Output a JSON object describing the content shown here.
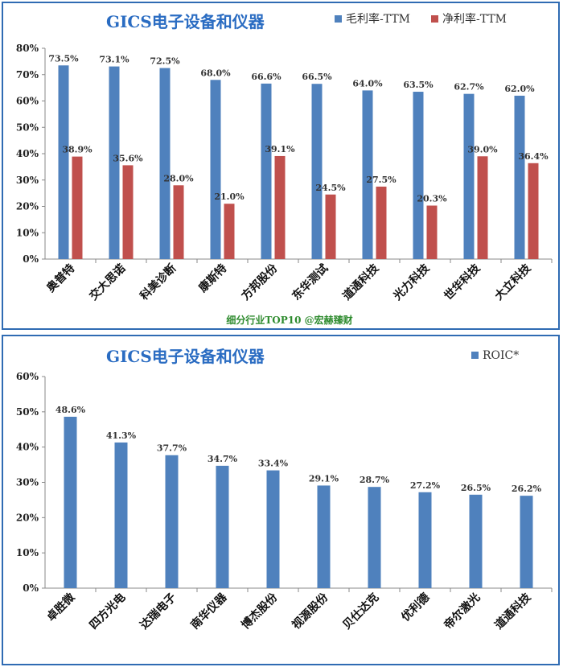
{
  "chart_data": [
    {
      "type": "bar",
      "title": "GICS电子设备和仪器",
      "caption": "细分行业TOP10 @宏赫臻财",
      "categories": [
        "奥普特",
        "交大思诺",
        "科美诊断",
        "康斯特",
        "方邦股份",
        "东华测试",
        "道通科技",
        "光力科技",
        "世华科技",
        "大立科技"
      ],
      "series": [
        {
          "name": "毛利率-TTM",
          "color": "#4f81bd",
          "values": [
            73.5,
            73.1,
            72.5,
            68.0,
            66.6,
            66.5,
            64.0,
            63.5,
            62.7,
            62.0
          ],
          "labels": [
            "73.5%",
            "73.1%",
            "72.5%",
            "68.0%",
            "66.6%",
            "66.5%",
            "64.0%",
            "63.5%",
            "62.7%",
            "62.0%"
          ]
        },
        {
          "name": "净利率-TTM",
          "color": "#c0504d",
          "values": [
            38.9,
            35.6,
            28.0,
            21.0,
            39.1,
            24.5,
            27.5,
            20.3,
            39.0,
            36.4
          ],
          "labels": [
            "38.9%",
            "35.6%",
            "28.0%",
            "21.0%",
            "39.1%",
            "24.5%",
            "27.5%",
            "20.3%",
            "39.0%",
            "36.4%"
          ]
        }
      ],
      "yticks": [
        "0%",
        "10%",
        "20%",
        "30%",
        "40%",
        "50%",
        "60%",
        "70%",
        "80%"
      ],
      "ylim": [
        0,
        80
      ],
      "grid": false,
      "legend": "top-right"
    },
    {
      "type": "bar",
      "title": "GICS电子设备和仪器",
      "categories": [
        "卓胜微",
        "四方光电",
        "达瑞电子",
        "南华仪器",
        "博杰股份",
        "视源股份",
        "贝仕达克",
        "优利德",
        "帝尔激光",
        "道通科技"
      ],
      "series": [
        {
          "name": "ROIC*",
          "color": "#4f81bd",
          "values": [
            48.6,
            41.3,
            37.7,
            34.7,
            33.4,
            29.1,
            28.7,
            27.2,
            26.5,
            26.2
          ],
          "labels": [
            "48.6%",
            "41.3%",
            "37.7%",
            "34.7%",
            "33.4%",
            "29.1%",
            "28.7%",
            "27.2%",
            "26.5%",
            "26.2%"
          ]
        }
      ],
      "yticks": [
        "0%",
        "10%",
        "20%",
        "30%",
        "40%",
        "50%",
        "60%"
      ],
      "ylim": [
        0,
        60
      ],
      "grid": false,
      "legend": "top-right"
    }
  ]
}
